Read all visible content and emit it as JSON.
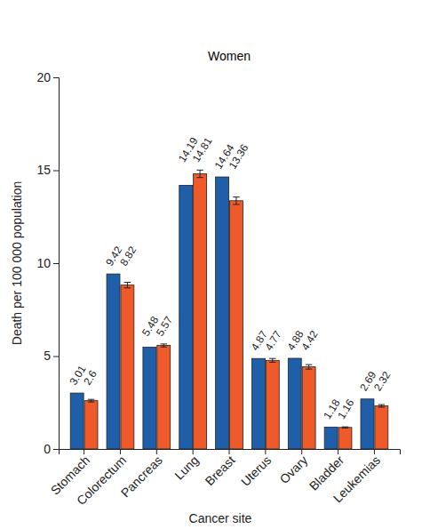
{
  "chart_data": {
    "type": "bar",
    "title": "Women",
    "x_label": "Cancer site",
    "y_label": "Death per 100 000 population",
    "categories": [
      "Stomach",
      "Colorectum",
      "Pancreas",
      "Lung",
      "Breast",
      "Uterus",
      "Ovary",
      "Bladder",
      "Leukemias"
    ],
    "series": [
      {
        "color": "#1f5fa9",
        "values": [
          3.01,
          9.42,
          5.48,
          14.19,
          14.64,
          4.87,
          4.88,
          1.18,
          2.69
        ]
      },
      {
        "color": "#ee5a2a",
        "values": [
          2.6,
          8.82,
          5.57,
          14.81,
          13.36,
          4.77,
          4.42,
          1.16,
          2.32
        ],
        "errors": [
          0.07,
          0.15,
          0.08,
          0.2,
          0.2,
          0.1,
          0.12,
          0.03,
          0.07
        ]
      }
    ],
    "ylim": [
      0,
      20
    ],
    "yticks": [
      0,
      5,
      10,
      15,
      20
    ],
    "grid": false,
    "data_labels": true
  }
}
